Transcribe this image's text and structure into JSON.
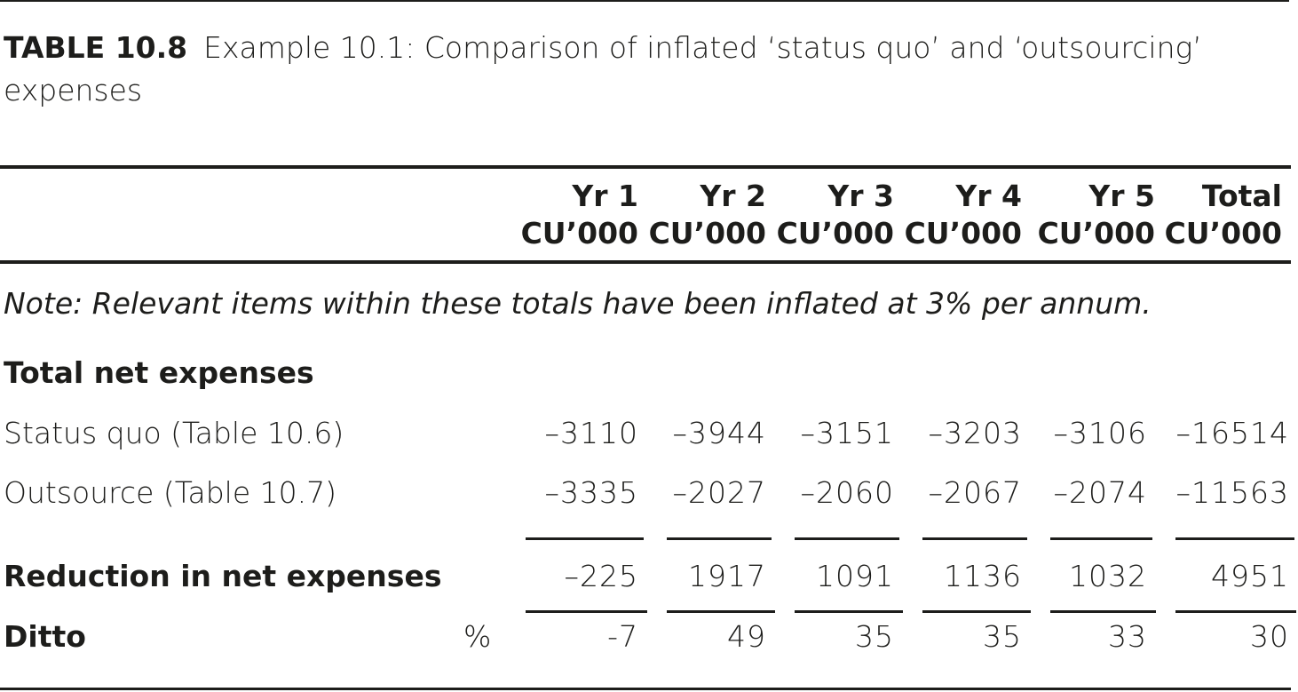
{
  "caption": {
    "number": "TABLE 10.8",
    "text": "Example 10.1: Comparison of inflated ‘status quo’ and ‘outsourcing’ expenses"
  },
  "columns": [
    {
      "line1": "Yr 1",
      "line2": "CU’000"
    },
    {
      "line1": "Yr 2",
      "line2": "CU’000"
    },
    {
      "line1": "Yr 3",
      "line2": "CU’000"
    },
    {
      "line1": "Yr 4",
      "line2": "CU’000"
    },
    {
      "line1": "Yr 5",
      "line2": "CU’000"
    },
    {
      "line1": "Total",
      "line2": "CU’000"
    }
  ],
  "note": "Note: Relevant items within these totals have been inflated at 3% per annum.",
  "section_heading": "Total net expenses",
  "rows": {
    "status_quo": {
      "label": "Status quo (Table 10.6)",
      "values": [
        "–3110",
        "–3944",
        "–3151",
        "–3203",
        "–3106",
        "–16514"
      ]
    },
    "outsource": {
      "label": "Outsource (Table 10.7)",
      "values": [
        "–3335",
        "–2027",
        "–2060",
        "–2067",
        "–2074",
        "–11563"
      ]
    },
    "reduction": {
      "label": "Reduction in net expenses",
      "values": [
        "–225",
        "1917",
        "1091",
        "1136",
        "1032",
        "4951"
      ]
    },
    "ditto": {
      "label": "Ditto",
      "unit": "%",
      "values": [
        "-7",
        "49",
        "35",
        "35",
        "33",
        "30"
      ]
    }
  }
}
